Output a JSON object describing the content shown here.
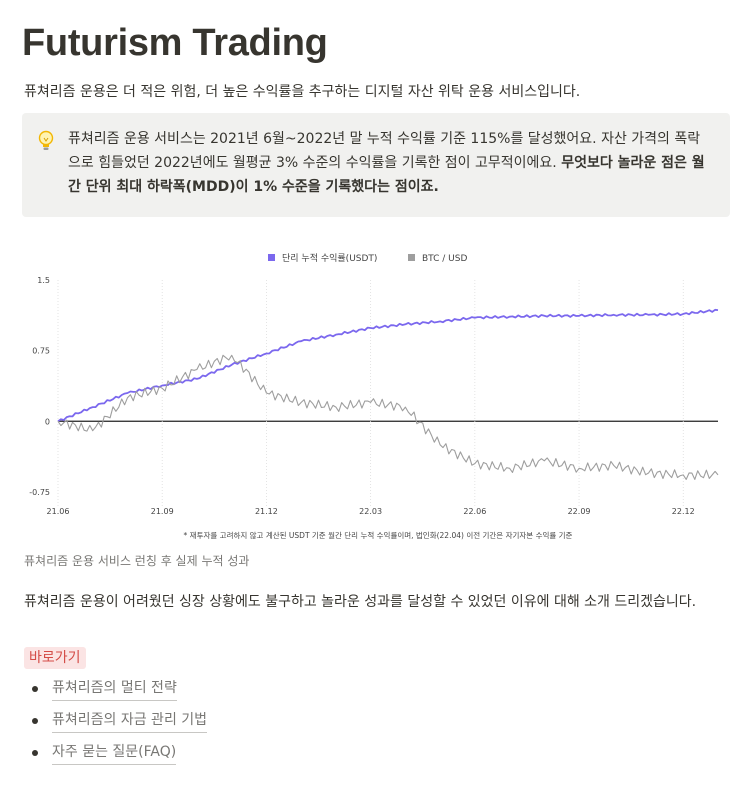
{
  "page": {
    "title": "Futurism Trading",
    "intro": "퓨쳐리즘 운용은 더 적은 위험, 더 높은 수익률을 추구하는 디지털 자산 위탁 운용 서비스입니다.",
    "callout": {
      "icon": "lightbulb-icon",
      "text_regular": "퓨쳐리즘 운용 서비스는 2021년 6월~2022년 말 누적 수익률 기준 115%를 달성했어요. 자산 가격의 폭락으로 힘들었던 2022년에도 월평균 3% 수준의 수익률을 기록한 점이 고무적이에요. ",
      "text_bold": "무엇보다 놀라운 점은 월간 단위 최대 하락폭(MDD)이 1% 수준을 기록했다는 점이죠."
    },
    "caption": "퓨쳐리즘 운용 서비스 런칭 후 실제 누적 성과",
    "paragraph": "퓨쳐리즘 운용이 어려웠던 싱장 상황에도 불구하고 놀라운 성과를 달성할 수 있었던 이유에 대해 소개 드리겠습니다.",
    "tag": "바로가기",
    "links": [
      "퓨쳐리즘의 멀티 전략",
      "퓨쳐리즘의 자금 관리 기법",
      "자주 묻는 질문(FAQ)"
    ]
  },
  "colors": {
    "series_1": "#7b68ee",
    "series_2": "#9e9e9e",
    "tag_bg": "#fbe4e4",
    "tag_text": "#d44c47",
    "callout_bg": "#f1f1ef"
  },
  "chart_data": {
    "type": "line",
    "title": "",
    "xlabel": "",
    "ylabel": "",
    "ylim": [
      -0.9,
      1.5
    ],
    "yticks": [
      1.5,
      0.75,
      0,
      -0.75
    ],
    "ytick_labels": [
      "1.5",
      "0.75",
      "0",
      "-0.75"
    ],
    "xticks": [
      "21.06",
      "21.09",
      "21.12",
      "22.03",
      "22.06",
      "22.09",
      "22.12"
    ],
    "x_range_months": [
      "21.06",
      "23.01"
    ],
    "legend_position": "top-center",
    "grid": false,
    "footnote": "* 재투자를 고려하지 않고 계산된 USDT 기준 월간 단리 누적 수익률이며, 법인화(22.04) 이전 기간은 자기자본 수익률 기준",
    "series": [
      {
        "name": "단리 누적 수익률(USDT)",
        "color": "#7b68ee",
        "x": [
          "21.06",
          "21.07",
          "21.08",
          "21.09",
          "21.10",
          "21.11",
          "21.12",
          "22.01",
          "22.02",
          "22.03",
          "22.04",
          "22.05",
          "22.06",
          "22.07",
          "22.08",
          "22.09",
          "22.10",
          "22.11",
          "22.12",
          "23.01"
        ],
        "values": [
          0.0,
          0.15,
          0.3,
          0.38,
          0.45,
          0.6,
          0.72,
          0.85,
          0.92,
          0.99,
          1.03,
          1.06,
          1.1,
          1.11,
          1.12,
          1.12,
          1.13,
          1.13,
          1.14,
          1.18
        ]
      },
      {
        "name": "BTC / USD",
        "color": "#9e9e9e",
        "x": [
          "21.06",
          "21.07",
          "21.08",
          "21.09",
          "21.10",
          "21.11",
          "21.12",
          "22.01",
          "22.02",
          "22.03",
          "22.04",
          "22.05",
          "22.06",
          "22.07",
          "22.08",
          "22.09",
          "22.10",
          "22.11",
          "22.12",
          "23.01"
        ],
        "values": [
          0.0,
          -0.1,
          0.25,
          0.35,
          0.55,
          0.7,
          0.3,
          0.2,
          0.15,
          0.2,
          0.15,
          -0.25,
          -0.45,
          -0.5,
          -0.42,
          -0.5,
          -0.47,
          -0.55,
          -0.57,
          -0.57
        ]
      }
    ]
  }
}
